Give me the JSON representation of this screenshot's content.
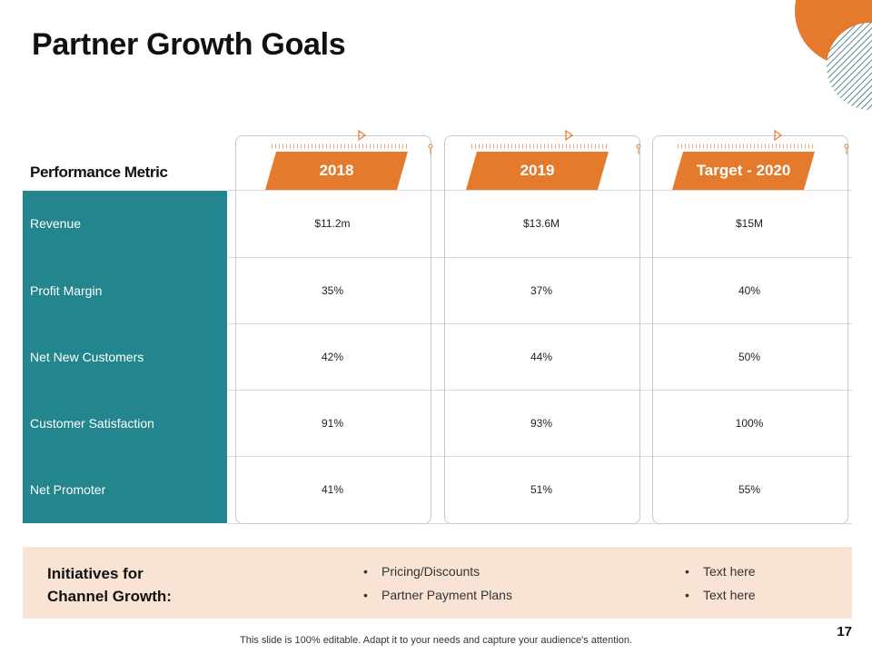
{
  "title": "Partner Growth Goals",
  "colors": {
    "teal": "#23858d",
    "orange": "#e67a2c",
    "peach": "#f9e3d4"
  },
  "table": {
    "metric_header": "Performance Metric",
    "columns": [
      "2018",
      "2019",
      "Target - 2020"
    ],
    "rows": [
      {
        "metric": "Revenue",
        "values": [
          "$11.2m",
          "$13.6M",
          "$15M"
        ]
      },
      {
        "metric": "Profit Margin",
        "values": [
          "35%",
          "37%",
          "40%"
        ]
      },
      {
        "metric": "Net New Customers",
        "values": [
          "42%",
          "44%",
          "50%"
        ]
      },
      {
        "metric": "Customer Satisfaction",
        "values": [
          "91%",
          "93%",
          "100%"
        ]
      },
      {
        "metric": "Net Promoter",
        "values": [
          "41%",
          "51%",
          "55%"
        ]
      }
    ]
  },
  "initiatives": {
    "title_line1": "Initiatives for",
    "title_line2": "Channel Growth:",
    "bullet_char": "•",
    "col1": [
      "Pricing/Discounts",
      "Partner Payment Plans"
    ],
    "col2": [
      "Text here",
      "Text here"
    ]
  },
  "footer": "This slide is 100% editable. Adapt it to your needs and capture your audience's attention.",
  "page_number": "17"
}
